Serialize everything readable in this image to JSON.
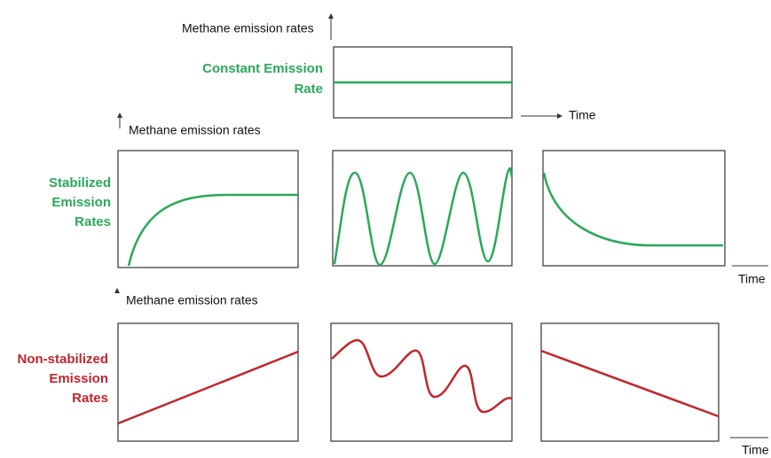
{
  "rows": [
    {
      "axis_label": "Methane emission rates",
      "label_lines": [
        "Constant Emission",
        "Rate"
      ],
      "time_label": "Time"
    },
    {
      "axis_label": "Methane emission rates",
      "label_lines": [
        "Stabilized",
        "Emission",
        "Rates"
      ],
      "time_label": "Time"
    },
    {
      "axis_label": "Methane emission rates",
      "label_lines": [
        "Non-stabilized",
        "Emission",
        "Rates"
      ],
      "time_label": "Time"
    }
  ]
}
